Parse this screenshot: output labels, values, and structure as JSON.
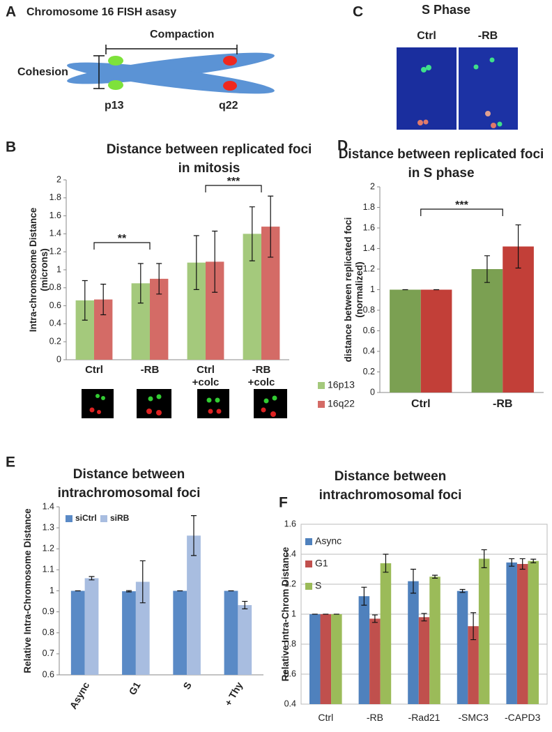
{
  "panel_labels": [
    "A",
    "B",
    "C",
    "D",
    "E",
    "F"
  ],
  "diagram": {
    "title": "Chromosome 16 FISH asasy",
    "compaction": "Compaction",
    "cohesion": "Cohesion",
    "p_arm": "p13",
    "q_arm": "q22"
  },
  "micrograph": {
    "title": "S Phase",
    "left": "Ctrl",
    "right": "-RB"
  },
  "chart_data": [
    {
      "type": "bar",
      "title": "Distance between replicated foci in mitosis",
      "y_label": "Intra-chromosome Distance (microns)",
      "categories": [
        "Ctrl",
        "-RB",
        "Ctrl +colc",
        "-RB +colc"
      ],
      "series": [
        {
          "name": "16p13",
          "color": "#a4c97c",
          "values": [
            0.66,
            0.85,
            1.08,
            1.4
          ],
          "errors": [
            0.22,
            0.22,
            0.3,
            0.3
          ]
        },
        {
          "name": "16q22",
          "color": "#d46b66",
          "values": [
            0.67,
            0.9,
            1.09,
            1.48
          ],
          "errors": [
            0.17,
            0.17,
            0.34,
            0.34
          ]
        }
      ],
      "ylim": [
        0,
        2
      ],
      "yticks": [
        0,
        0.2,
        0.4,
        0.6,
        0.8,
        1,
        1.2,
        1.4,
        1.6,
        1.8,
        2
      ],
      "grid": false,
      "legend": "right",
      "annotations": [
        "**",
        "***"
      ]
    },
    {
      "type": "bar",
      "title": "Distance between replicated foci in S phase",
      "y_label": "distance between replicated foci (normalized)",
      "categories": [
        "Ctrl",
        "-RB"
      ],
      "series": [
        {
          "color": "#7ba052",
          "values": [
            1.0,
            1.2
          ],
          "errors": [
            0,
            0.13
          ]
        },
        {
          "color": "#c23f38",
          "values": [
            1.0,
            1.42
          ],
          "errors": [
            0,
            0.21
          ]
        }
      ],
      "ylim": [
        0,
        2
      ],
      "yticks": [
        0,
        0.2,
        0.4,
        0.6,
        0.8,
        1,
        1.2,
        1.4,
        1.6,
        1.8,
        2
      ],
      "grid": false,
      "annotations": [
        "***"
      ]
    },
    {
      "type": "bar",
      "title": "Distance between intrachromosomal foci",
      "y_label": "Relative Intra-Chromosome Distance",
      "categories": [
        "Async",
        "G1",
        "S",
        "+ Thy"
      ],
      "series": [
        {
          "name": "siCtrl",
          "color": "#5a8ac6",
          "values": [
            1,
            0.998,
            1,
            1
          ],
          "errors": [
            0,
            0.003,
            0,
            0
          ]
        },
        {
          "name": "siRB",
          "color": "#a8bde0",
          "values": [
            1.06,
            1.043,
            1.263,
            0.932
          ],
          "errors": [
            0.008,
            0.1,
            0.095,
            0.018
          ]
        }
      ],
      "ylim": [
        0.6,
        1.4
      ],
      "yticks": [
        0.6,
        0.7,
        0.8,
        0.9,
        1,
        1.1,
        1.2,
        1.3,
        1.4
      ],
      "grid": false,
      "legend": "upper left"
    },
    {
      "type": "bar",
      "title": "Distance between intrachromosomal foci",
      "y_label": "Relative Intra-Chrom Distance",
      "categories": [
        "Ctrl",
        "-RB",
        "-Rad21",
        "-SMC3",
        "-CAPD3"
      ],
      "series": [
        {
          "name": "Async",
          "color": "#4f81bd",
          "values": [
            1,
            1.12,
            1.22,
            1.155,
            1.345
          ],
          "errors": [
            0,
            0.06,
            0.08,
            0.01,
            0.025
          ]
        },
        {
          "name": "G1",
          "color": "#c0504d",
          "values": [
            1,
            0.97,
            0.98,
            0.92,
            1.335
          ],
          "errors": [
            0,
            0.025,
            0.025,
            0.09,
            0.035
          ]
        },
        {
          "name": "S",
          "color": "#9bbb59",
          "values": [
            1,
            1.34,
            1.25,
            1.37,
            1.355
          ],
          "errors": [
            0,
            0.06,
            0.01,
            0.06,
            0.012
          ]
        }
      ],
      "ylim": [
        0.4,
        1.6
      ],
      "yticks": [
        0.4,
        0.6,
        0.8,
        1,
        1.2,
        1.4,
        1.6
      ],
      "grid": true,
      "legend": "upper left vertical"
    }
  ]
}
